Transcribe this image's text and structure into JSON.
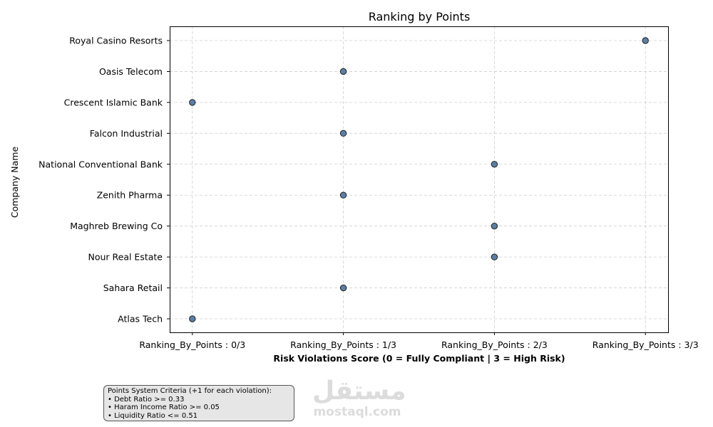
{
  "chart_data": {
    "type": "scatter",
    "title": "Ranking by Points",
    "xlabel": "Risk Violations Score (0 = Fully Compliant | 3 = High Risk)",
    "ylabel": "Company Name",
    "xlim": [
      -0.15,
      3.15
    ],
    "x_ticks": [
      {
        "value": 0,
        "label": "Ranking_By_Points : 0/3"
      },
      {
        "value": 1,
        "label": "Ranking_By_Points : 1/3"
      },
      {
        "value": 2,
        "label": "Ranking_By_Points : 2/3"
      },
      {
        "value": 3,
        "label": "Ranking_By_Points : 3/3"
      }
    ],
    "grid": true,
    "points": [
      {
        "company": "Atlas Tech",
        "score": 0
      },
      {
        "company": "Sahara Retail",
        "score": 1
      },
      {
        "company": "Nour Real Estate",
        "score": 2
      },
      {
        "company": "Maghreb Brewing Co",
        "score": 2
      },
      {
        "company": "Zenith Pharma",
        "score": 1
      },
      {
        "company": "National Conventional Bank",
        "score": 2
      },
      {
        "company": "Falcon Industrial",
        "score": 1
      },
      {
        "company": "Crescent Islamic Bank",
        "score": 0
      },
      {
        "company": "Oasis Telecom",
        "score": 1
      },
      {
        "company": "Royal Casino Resorts",
        "score": 3
      }
    ],
    "marker_color": "#5b7fa6",
    "marker_edge_color": "#1f1f1f"
  },
  "criteria": {
    "title": "Points System Criteria (+1 for each violation):",
    "items": [
      "• Debt Ratio >= 0.33",
      "• Haram Income Ratio >= 0.05",
      "• Liquidity Ratio <= 0.51"
    ]
  },
  "watermark": {
    "arabic": "مستقل",
    "latin": "mostaql.com"
  }
}
